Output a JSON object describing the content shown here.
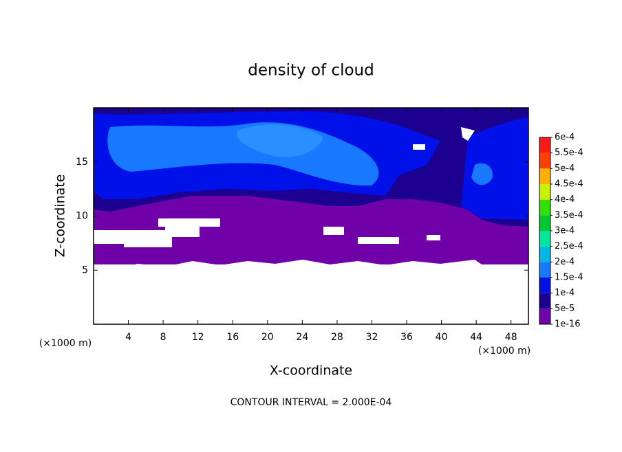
{
  "chart_data": {
    "type": "contour",
    "title": "density of cloud",
    "x_label": "X-coordinate",
    "y_label": "Z-coordinate",
    "x_unit": "(×1000 m)",
    "y_unit": "(×1000 m)",
    "annotation": "CONTOUR INTERVAL = 2.000E-04",
    "xlim": [
      0,
      50
    ],
    "ylim": [
      0,
      20
    ],
    "xticks": [
      4,
      8,
      12,
      16,
      20,
      24,
      28,
      32,
      36,
      40,
      44,
      48
    ],
    "yticks": [
      5,
      10,
      15
    ],
    "colorbar": {
      "levels": [
        {
          "value": 1e-16,
          "label": "1e-16"
        },
        {
          "value": 5e-05,
          "label": "5e-5"
        },
        {
          "value": 0.0001,
          "label": "1e-4"
        },
        {
          "value": 0.00015,
          "label": "1.5e-4"
        },
        {
          "value": 0.0002,
          "label": "2e-4"
        },
        {
          "value": 0.00025,
          "label": "2.5e-4"
        },
        {
          "value": 0.0003,
          "label": "3e-4"
        },
        {
          "value": 0.00035,
          "label": "3.5e-4"
        },
        {
          "value": 0.0004,
          "label": "4e-4"
        },
        {
          "value": 0.00045,
          "label": "4.5e-4"
        },
        {
          "value": 0.0005,
          "label": "5e-4"
        },
        {
          "value": 0.00055,
          "label": "5.5e-4"
        },
        {
          "value": 0.0006,
          "label": "6e-4"
        }
      ],
      "colors": [
        "#7000a8",
        "#1c0090",
        "#0010e8",
        "#1878ff",
        "#00b8e8",
        "#00e8a0",
        "#00c830",
        "#30e000",
        "#c8f000",
        "#ffb000",
        "#ff4000",
        "#ff1818"
      ]
    }
  }
}
